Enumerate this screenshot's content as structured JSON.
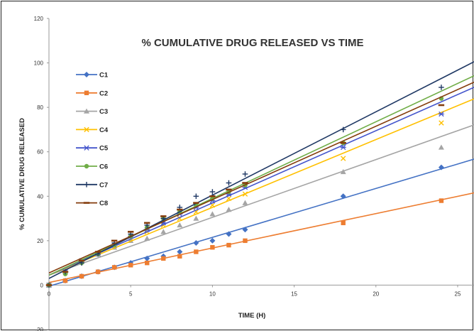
{
  "chart_data": {
    "type": "scatter",
    "title": "% CUMULATIVE DRUG RELEASED VS TIME",
    "xlabel": "TIME (H)",
    "ylabel": "% CUMULATIVE DRUG RELEASED",
    "xlim": [
      0,
      26
    ],
    "ylim": [
      -20,
      120
    ],
    "x_ticks": [
      0,
      5,
      10,
      15,
      20,
      25
    ],
    "y_ticks": [
      -20,
      0,
      20,
      40,
      60,
      80,
      100,
      120
    ],
    "grid": false,
    "legend_position": "top-left",
    "trendlines": "linear",
    "x": [
      0,
      1,
      2,
      3,
      4,
      5,
      6,
      7,
      8,
      9,
      10,
      11,
      12,
      18,
      24
    ],
    "series": [
      {
        "name": "C1",
        "color": "#4472C4",
        "marker": "diamond",
        "values": [
          0,
          2,
          4,
          6,
          8,
          10,
          12,
          13,
          15,
          19,
          20,
          23,
          25,
          40,
          53
        ],
        "trend": [
          -0.5,
          2.2
        ]
      },
      {
        "name": "C2",
        "color": "#ED7D31",
        "marker": "square",
        "values": [
          0,
          2,
          4,
          6,
          8,
          9,
          10,
          12,
          13,
          15,
          17,
          18,
          20,
          28,
          38
        ],
        "trend": [
          1.2,
          1.55
        ]
      },
      {
        "name": "C3",
        "color": "#A5A5A5",
        "marker": "triangle",
        "values": [
          0,
          6,
          11,
          14,
          17,
          20,
          21,
          24,
          27,
          30,
          32,
          34,
          37,
          51,
          62
        ],
        "trend": [
          4.5,
          2.6
        ]
      },
      {
        "name": "C4",
        "color": "#FFC000",
        "marker": "x",
        "values": [
          0,
          6,
          11,
          14,
          18,
          21,
          24,
          27,
          30,
          33,
          36,
          39,
          41,
          57,
          73
        ],
        "trend": [
          4.5,
          3.05
        ]
      },
      {
        "name": "C5",
        "color": "#4455CC",
        "marker": "asterisk",
        "values": [
          0,
          6,
          11,
          14,
          18,
          22,
          25,
          28,
          32,
          35,
          38,
          41,
          44,
          62,
          77
        ],
        "trend": [
          4.5,
          3.25
        ]
      },
      {
        "name": "C6",
        "color": "#70AD47",
        "marker": "circle",
        "values": [
          0,
          5,
          10,
          14,
          18,
          22,
          26,
          30,
          33,
          36,
          39,
          42,
          45,
          64,
          84
        ],
        "trend": [
          4.5,
          3.45
        ]
      },
      {
        "name": "C7",
        "color": "#1F3864",
        "marker": "plus",
        "values": [
          0,
          6,
          10,
          14,
          19,
          23,
          27,
          30,
          35,
          40,
          42,
          46,
          50,
          70,
          89
        ],
        "trend": [
          3.0,
          3.75
        ]
      },
      {
        "name": "C8",
        "color": "#843C0C",
        "marker": "dash",
        "values": [
          0,
          6,
          11,
          15,
          20,
          24,
          28,
          31,
          34,
          37,
          40,
          43,
          46,
          64,
          81
        ],
        "trend": [
          5.5,
          3.3
        ]
      }
    ]
  }
}
